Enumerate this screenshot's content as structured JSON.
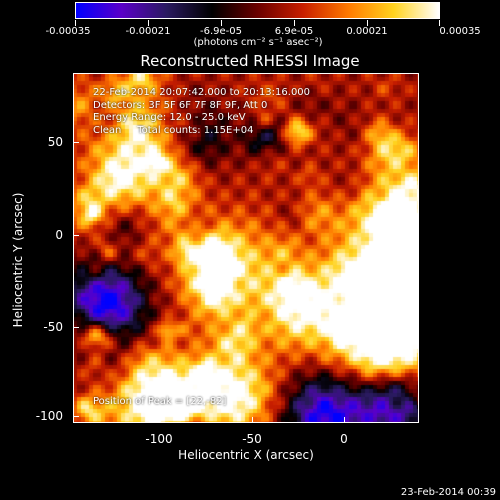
{
  "colorbar": {
    "tick_labels": [
      "-0.00035",
      "-0.00021",
      "-6.9e-05",
      "6.9e-05",
      "0.00021",
      "0.00035"
    ],
    "units": "(photons cm⁻² s⁻¹ asec⁻²)"
  },
  "title": "Reconstructed RHESSI Image",
  "info": {
    "line1": "22-Feb-2014 20:07:42.000 to 20:13:16.000",
    "line2": "Detectors: 3F 5F 6F 7F 8F 9F, Att 0",
    "line3": "Energy Range: 12.0 - 25.0 keV",
    "line4": "Clean     Total counts: 1.15E+04"
  },
  "peak_text": "Position of Peak = [22,-82]",
  "axes": {
    "xlabel": "Heliocentric X (arcsec)",
    "ylabel": "Heliocentric Y (arcsec)",
    "x_ticks": [
      "-100",
      "-50",
      "0"
    ],
    "y_ticks": [
      "50",
      "0",
      "-50",
      "-100"
    ]
  },
  "footer_timestamp": "23-Feb-2014 00:39",
  "colors": {
    "background": "#000000",
    "colormap": [
      "#0000ff",
      "#5a00c8",
      "#2a1a60",
      "#000000",
      "#6a0000",
      "#c81e00",
      "#ff7a00",
      "#ffd21e",
      "#ffffff"
    ]
  }
}
